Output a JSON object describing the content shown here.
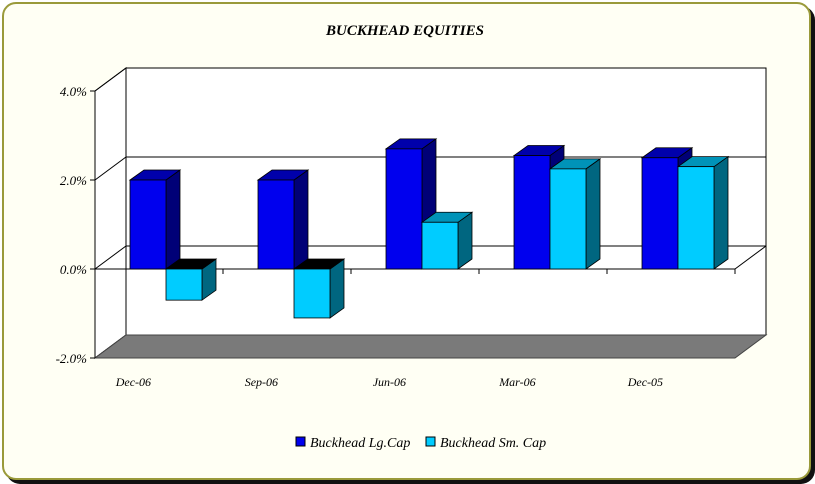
{
  "chart_data": {
    "type": "bar",
    "title": "BUCKHEAD EQUITIES",
    "xlabel": "",
    "ylabel": "",
    "categories": [
      "Dec-06",
      "Sep-06",
      "Jun-06",
      "Mar-06",
      "Dec-05"
    ],
    "series": [
      {
        "name": "Buckhead Lg.Cap",
        "values": [
          2.0,
          2.0,
          2.7,
          2.55,
          2.5
        ],
        "color": "#0000ee"
      },
      {
        "name": "Buckhead Sm. Cap",
        "values": [
          -0.7,
          -1.1,
          1.05,
          2.25,
          2.3
        ],
        "color": "#00ccff"
      }
    ],
    "ylim": [
      -2.0,
      4.0
    ],
    "yticks": [
      "4.0%",
      "2.0%",
      "0.0%",
      "-2.0%"
    ],
    "ytick_values": [
      4.0,
      2.0,
      0.0,
      -2.0
    ],
    "grid": true,
    "legend_position": "bottom",
    "style": "3d-clustered-column"
  }
}
